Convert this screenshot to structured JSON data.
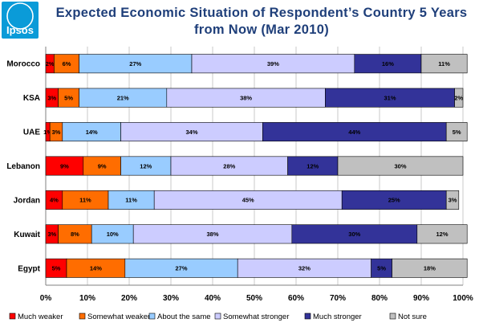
{
  "brand": {
    "logo_text": "Ipsos",
    "logo_color": "#0a9bd8"
  },
  "chart_data": {
    "type": "bar",
    "orientation": "horizontal",
    "stacked": true,
    "title": "Expected Economic Situation of Respondent’s Country 5 Years from Now (Mar 2010)",
    "categories": [
      "Morocco",
      "KSA",
      "UAE",
      "Lebanon",
      "Jordan",
      "Kuwait",
      "Egypt"
    ],
    "x_ticks": [
      "0%",
      "10%",
      "20%",
      "30%",
      "40%",
      "50%",
      "60%",
      "70%",
      "80%",
      "90%",
      "100%"
    ],
    "xlim": [
      0,
      100
    ],
    "grid": true,
    "legend_position": "bottom",
    "series": [
      {
        "name": "Much weaker",
        "color": "#ff0000",
        "values": [
          2,
          3,
          1,
          9,
          4,
          3,
          5
        ],
        "labels": [
          "2%",
          "3%",
          "1%",
          "9%",
          "4%",
          "3%",
          "5%"
        ]
      },
      {
        "name": "Somewhat weaker",
        "color": "#ff6d00",
        "values": [
          6,
          5,
          3,
          9,
          11,
          8,
          14
        ],
        "labels": [
          "6%",
          "5%",
          "3%",
          "9%",
          "11%",
          "8%",
          "14%"
        ]
      },
      {
        "name": "About the same",
        "color": "#99ccff",
        "values": [
          27,
          21,
          14,
          12,
          11,
          10,
          27
        ],
        "labels": [
          "27%",
          "21%",
          "14%",
          "12%",
          "11%",
          "10%",
          "27%"
        ]
      },
      {
        "name": "Somewhat stronger",
        "color": "#ccccff",
        "values": [
          39,
          38,
          34,
          28,
          45,
          38,
          32
        ],
        "labels": [
          "39%",
          "38%",
          "34%",
          "28%",
          "45%",
          "38%",
          "32%"
        ]
      },
      {
        "name": "Much stronger",
        "color": "#333399",
        "values": [
          16,
          31,
          44,
          12,
          25,
          30,
          5
        ],
        "labels": [
          "16%",
          "31%",
          "44%",
          "12%",
          "25%",
          "30%",
          "5%"
        ]
      },
      {
        "name": "Not sure",
        "color": "#c0c0c0",
        "values": [
          11,
          2,
          5,
          30,
          3,
          12,
          18
        ],
        "labels": [
          "11%",
          "2%",
          "5%",
          "30%",
          "3%",
          "12%",
          "18%"
        ]
      }
    ]
  }
}
